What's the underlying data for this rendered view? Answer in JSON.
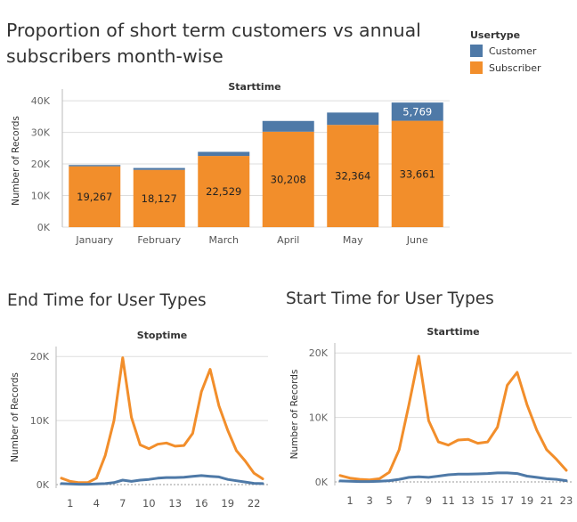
{
  "colors": {
    "customer": "#4e79a7",
    "subscriber": "#f28e2b",
    "axis": "#555555",
    "grid": "#dddddd"
  },
  "legend": {
    "title": "Usertype",
    "items": [
      "Customer",
      "Subscriber"
    ]
  },
  "chart_data": [
    {
      "type": "bar",
      "title": "Proportion of short term customers vs annual subscribers month-wise",
      "header": "Starttime",
      "ylabel": "Number of Records",
      "xlabel": "",
      "categories": [
        "January",
        "February",
        "March",
        "April",
        "May",
        "June"
      ],
      "series": [
        {
          "name": "Subscriber",
          "values": [
            19267,
            18127,
            22529,
            30208,
            32364,
            33661
          ],
          "labels": [
            "19,267",
            "18,127",
            "22,529",
            "30,208",
            "32,364",
            "33,661"
          ]
        },
        {
          "name": "Customer",
          "values": [
            400,
            600,
            1300,
            3400,
            3900,
            5769
          ],
          "labels": [
            "",
            "",
            "",
            "",
            "",
            "5,769"
          ]
        }
      ],
      "stacked": true,
      "ylim": [
        0,
        42000
      ],
      "yticks": [
        0,
        10000,
        20000,
        30000,
        40000
      ],
      "ytick_labels": [
        "0K",
        "10K",
        "20K",
        "30K",
        "40K"
      ]
    },
    {
      "type": "line",
      "title": "End Time for User Types",
      "header": "Stoptime",
      "ylabel": "Number of Records",
      "xlabel": "",
      "x": [
        0,
        1,
        2,
        3,
        4,
        5,
        6,
        7,
        8,
        9,
        10,
        11,
        12,
        13,
        14,
        15,
        16,
        17,
        18,
        19,
        20,
        21,
        22,
        23
      ],
      "series": [
        {
          "name": "Subscriber",
          "values": [
            1000,
            500,
            300,
            300,
            1000,
            4500,
            10000,
            19800,
            10500,
            6200,
            5600,
            6300,
            6500,
            6000,
            6100,
            8000,
            14500,
            18000,
            12300,
            8500,
            5300,
            3700,
            1800,
            900
          ]
        },
        {
          "name": "Customer",
          "values": [
            150,
            100,
            50,
            50,
            100,
            150,
            300,
            700,
            500,
            700,
            800,
            1000,
            1100,
            1100,
            1150,
            1300,
            1400,
            1300,
            1200,
            800,
            600,
            400,
            200,
            150
          ]
        }
      ],
      "xticks": [
        1,
        4,
        7,
        10,
        13,
        16,
        19,
        22
      ],
      "ylim": [
        0,
        21000
      ],
      "yticks": [
        0,
        10000,
        20000
      ],
      "ytick_labels": [
        "0K",
        "10K",
        "20K"
      ]
    },
    {
      "type": "line",
      "title": "Start Time for User Types",
      "header": "Starttime",
      "ylabel": "Number of Records",
      "xlabel": "",
      "x": [
        0,
        1,
        2,
        3,
        4,
        5,
        6,
        7,
        8,
        9,
        10,
        11,
        12,
        13,
        14,
        15,
        16,
        17,
        18,
        19,
        20,
        21,
        22,
        23
      ],
      "series": [
        {
          "name": "Subscriber",
          "values": [
            1000,
            600,
            400,
            300,
            500,
            1500,
            5000,
            12000,
            19500,
            9500,
            6200,
            5700,
            6500,
            6600,
            6000,
            6200,
            8500,
            15000,
            17000,
            12000,
            8000,
            5000,
            3500,
            1800
          ]
        },
        {
          "name": "Customer",
          "values": [
            150,
            100,
            50,
            50,
            100,
            200,
            400,
            700,
            800,
            700,
            900,
            1100,
            1200,
            1200,
            1250,
            1300,
            1400,
            1400,
            1300,
            900,
            700,
            500,
            400,
            200
          ]
        }
      ],
      "xticks": [
        1,
        3,
        5,
        7,
        9,
        11,
        13,
        15,
        17,
        19,
        21,
        23
      ],
      "ylim": [
        0,
        21000
      ],
      "yticks": [
        0,
        10000,
        20000
      ],
      "ytick_labels": [
        "0K",
        "10K",
        "20K"
      ]
    }
  ]
}
